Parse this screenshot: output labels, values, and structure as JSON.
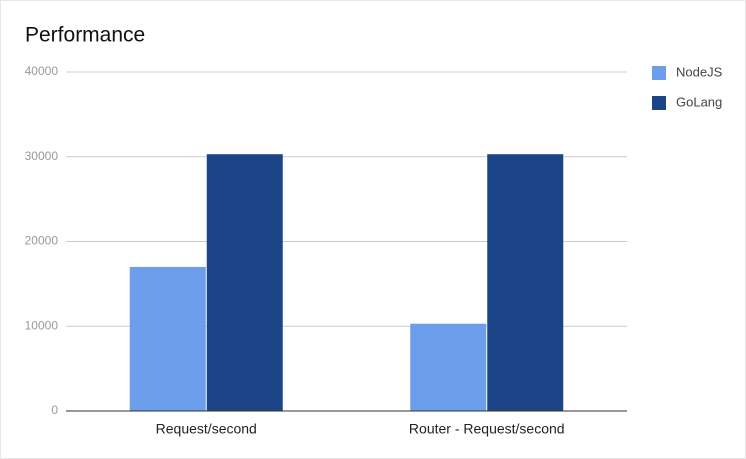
{
  "chart_data": {
    "type": "bar",
    "title": "Performance",
    "categories": [
      "Request/second",
      "Router - Request/second"
    ],
    "series": [
      {
        "name": "NodeJS",
        "color": "#6d9eeb",
        "values": [
          17000,
          10300
        ]
      },
      {
        "name": "GoLang",
        "color": "#1c4587",
        "values": [
          30300,
          30300
        ]
      }
    ],
    "ylim": [
      0,
      40000
    ],
    "yticks": [
      0,
      10000,
      20000,
      30000,
      40000
    ],
    "grid": true,
    "legend": "right"
  }
}
